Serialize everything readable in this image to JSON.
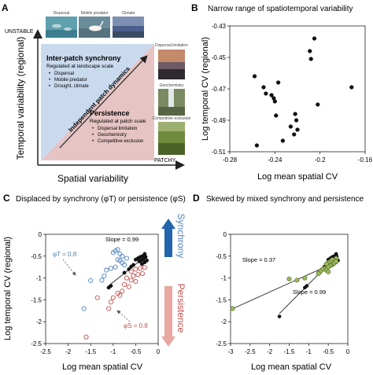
{
  "panelA": {
    "letter": "A",
    "y_axis_label": "Temporal variability (regional)",
    "x_axis_label": "Spatial variability",
    "unstable_label": "UNSTABLE",
    "patchy_label": "PATCHY",
    "arrow_label": "Independent patch dynamics",
    "photos_top": [
      "Dispersal",
      "Mobile predator",
      "Climate"
    ],
    "photos_right": [
      "Dispersal limitation",
      "Geochemistry",
      "Competitive exclusion"
    ],
    "synchrony_title": "Inter-patch synchrony",
    "synchrony_sub": "Regulated at landscape scale",
    "synchrony_items": [
      "Dispersal",
      "Mobile predator",
      "Drought, climate"
    ],
    "persistence_title": "Persistence",
    "persistence_sub": "Regulated at patch scale",
    "persistence_items": [
      "Dispersal limitation",
      "Geochemistry",
      "Competitive exclusion"
    ],
    "colors": {
      "blue_triangle": "#c9d9ee",
      "red_triangle": "#e6c4c4"
    }
  },
  "panelB": {
    "letter": "B"
  },
  "panelC": {
    "letter": "C",
    "phi_t_label": "φT = 0.8",
    "phi_s_label": "φS = 0.8",
    "synchrony_label": "Synchrony",
    "persistence_label": "Persistence",
    "colors": {
      "blue": "#4f81bd",
      "red": "#c0504d"
    }
  },
  "panelD": {
    "letter": "D",
    "colors": {
      "green": "#9bbb59"
    }
  },
  "chart_data": [
    {
      "panel": "B",
      "type": "scatter",
      "title": "Narrow range of spatiotemporal variability",
      "xlabel": "Log mean spatial CV",
      "ylabel": "Log temporal CV (regional)",
      "xlim": [
        -0.28,
        -0.16
      ],
      "ylim": [
        -0.51,
        -0.43
      ],
      "xticks": [
        "-0.28",
        "-0.24",
        "-0.2",
        "-0.16"
      ],
      "yticks": [
        "-0.43",
        "-0.45",
        "-0.47",
        "-0.49",
        "-0.51"
      ],
      "series": [
        {
          "x": [
            -0.205,
            -0.209,
            -0.208,
            -0.258,
            -0.25,
            -0.248,
            -0.243,
            -0.241,
            -0.24,
            -0.237,
            -0.222,
            -0.221,
            -0.226,
            -0.22,
            -0.223,
            -0.202,
            -0.172,
            -0.239,
            -0.256,
            -0.233
          ],
          "y": [
            -0.438,
            -0.446,
            -0.451,
            -0.462,
            -0.469,
            -0.473,
            -0.474,
            -0.476,
            -0.478,
            -0.466,
            -0.486,
            -0.49,
            -0.494,
            -0.496,
            -0.499,
            -0.48,
            -0.469,
            -0.487,
            -0.506,
            -0.503
          ]
        }
      ]
    },
    {
      "panel": "C",
      "type": "scatter",
      "title": "Displaced by synchrony (φT) or persistence (φS)",
      "xlabel": "Log mean spatial CV",
      "ylabel": "Log temporal CV (regional)",
      "xlim": [
        -2.5,
        0
      ],
      "ylim": [
        -2.5,
        0
      ],
      "xticks": [
        "-2.5",
        "-2",
        "-1.5",
        "-1",
        "-0.5",
        "0"
      ],
      "yticks": [
        "0",
        "-0.5",
        "-1",
        "-1.5",
        "-2",
        "-2.5"
      ],
      "annotation": "Slope = 0.99",
      "series": [
        {
          "marker": "filled-black",
          "x": [
            -0.5,
            -0.45,
            -0.4,
            -0.35,
            -0.3,
            -0.42,
            -0.38,
            -0.33,
            -0.28,
            -0.36,
            -0.3,
            -0.25,
            -0.55,
            -0.6,
            -0.65,
            -0.75,
            -1.05,
            -1.1
          ],
          "y": [
            -0.58,
            -0.55,
            -0.52,
            -0.5,
            -0.45,
            -0.62,
            -0.6,
            -0.57,
            -0.52,
            -0.68,
            -0.64,
            -0.6,
            -0.7,
            -0.74,
            -0.8,
            -0.88,
            -1.18,
            -1.22
          ]
        },
        {
          "marker": "open-blue",
          "x": [
            -1.0,
            -0.95,
            -0.9,
            -0.85,
            -0.8,
            -0.9,
            -0.85,
            -0.8,
            -0.75,
            -0.7,
            -0.95,
            -1.05,
            -1.15,
            -1.2,
            -1.25,
            -1.5,
            -1.65
          ],
          "y": [
            -0.42,
            -0.38,
            -0.35,
            -0.45,
            -0.5,
            -0.58,
            -0.6,
            -0.65,
            -0.7,
            -0.55,
            -0.75,
            -0.78,
            -0.82,
            -0.95,
            -1.05,
            -1.06,
            -1.7
          ]
        },
        {
          "marker": "open-red",
          "x": [
            -0.6,
            -0.5,
            -0.4,
            -0.3,
            -0.55,
            -0.45,
            -0.35,
            -0.7,
            -0.6,
            -0.5,
            -0.75,
            -0.65,
            -0.8,
            -0.9,
            -0.85,
            -1.0,
            -1.05,
            -1.1,
            -1.35,
            -1.6
          ],
          "y": [
            -0.85,
            -0.8,
            -0.78,
            -0.76,
            -0.95,
            -0.92,
            -0.9,
            -1.0,
            -1.05,
            -1.08,
            -1.15,
            -1.2,
            -1.3,
            -1.35,
            -1.4,
            -1.45,
            -1.55,
            -1.7,
            -1.45,
            -2.35
          ]
        }
      ]
    },
    {
      "panel": "D",
      "type": "scatter",
      "title": "Skewed by mixed synchrony and persistence",
      "xlabel": "Log mean spatial CV",
      "ylabel": "",
      "xlim": [
        -3,
        0
      ],
      "ylim": [
        -2.5,
        0
      ],
      "xticks": [
        "-3",
        "-2.5",
        "-2",
        "-1.5",
        "-1",
        "-0.5",
        "0"
      ],
      "yticks": [
        "0",
        "-0.5",
        "-1",
        "-1.5",
        "-2",
        "-2.5"
      ],
      "annotations": [
        "Slope = 0.37",
        "Slope = 0.99"
      ],
      "series": [
        {
          "marker": "filled-black",
          "x": [
            -0.5,
            -0.45,
            -0.4,
            -0.35,
            -0.3,
            -0.42,
            -0.38,
            -0.33,
            -0.28,
            -0.36,
            -0.3,
            -0.25,
            -0.55,
            -0.6,
            -0.65,
            -0.75,
            -1.05,
            -1.1,
            -1.75
          ],
          "y": [
            -0.58,
            -0.55,
            -0.52,
            -0.5,
            -0.45,
            -0.62,
            -0.6,
            -0.57,
            -0.52,
            -0.68,
            -0.64,
            -0.6,
            -0.7,
            -0.74,
            -0.8,
            -0.88,
            -1.18,
            -1.22,
            -1.88
          ]
        },
        {
          "marker": "filled-green",
          "x": [
            -0.3,
            -0.35,
            -0.4,
            -0.45,
            -0.5,
            -0.55,
            -0.4,
            -0.45,
            -0.5,
            -0.6,
            -0.35,
            -0.3,
            -0.65,
            -0.7,
            -0.75,
            -0.55,
            -0.5,
            -1.1,
            -1.3,
            -1.5,
            -2.95
          ],
          "y": [
            -0.55,
            -0.6,
            -0.58,
            -0.62,
            -0.65,
            -0.68,
            -0.7,
            -0.72,
            -0.75,
            -0.78,
            -0.66,
            -0.62,
            -0.8,
            -0.85,
            -0.9,
            -0.82,
            -0.86,
            -1.0,
            -1.05,
            -1.02,
            -1.7
          ]
        }
      ]
    }
  ]
}
